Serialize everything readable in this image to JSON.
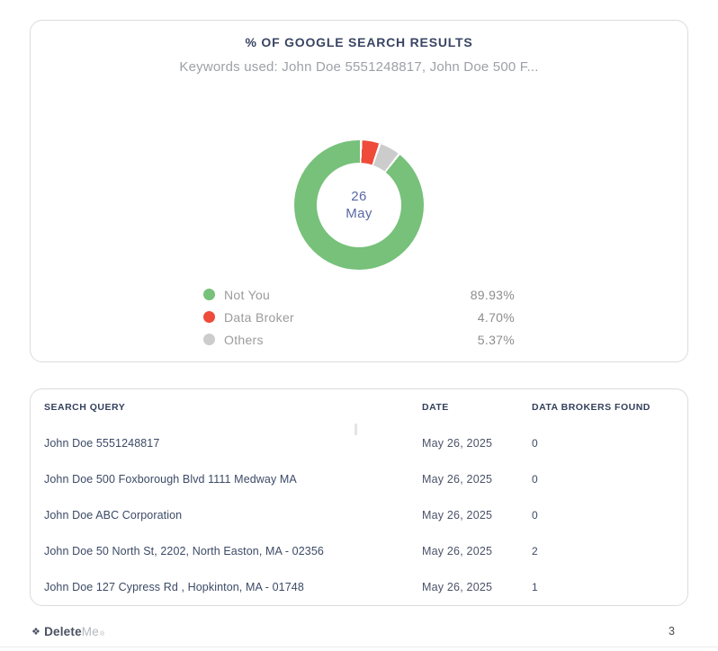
{
  "chart_data": {
    "type": "donut",
    "title": "% OF GOOGLE SEARCH RESULTS",
    "subtitle": "Keywords used: John Doe 5551248817, John Doe 500 F...",
    "center_label": {
      "day": "26",
      "month": "May"
    },
    "segments": [
      {
        "label": "Not You",
        "value": 89.93,
        "display": "89.93%",
        "color": "#77c17a"
      },
      {
        "label": "Data Broker",
        "value": 4.7,
        "display": "4.70%",
        "color": "#ef4b3a"
      },
      {
        "label": "Others",
        "value": 5.37,
        "display": "5.37%",
        "color": "#cccccc"
      }
    ],
    "draw_order": [
      1,
      2,
      0
    ],
    "start_angle_deg": 2,
    "gap_deg": 2,
    "legend_position": "bottom"
  },
  "table": {
    "columns": [
      "SEARCH QUERY",
      "DATE",
      "DATA BROKERS FOUND"
    ],
    "rows": [
      {
        "query": "John Doe 5551248817",
        "date": "May 26, 2025",
        "found": "0"
      },
      {
        "query": "John Doe 500 Foxborough Blvd 1111 Medway MA",
        "date": "May 26, 2025",
        "found": "0"
      },
      {
        "query": "John Doe ABC Corporation",
        "date": "May 26, 2025",
        "found": "0"
      },
      {
        "query": "John Doe 50 North St, 2202, North Easton, MA - 02356",
        "date": "May 26, 2025",
        "found": "2"
      },
      {
        "query": "John Doe 127 Cypress Rd , Hopkinton, MA - 01748",
        "date": "May 26, 2025",
        "found": "1"
      }
    ]
  },
  "footer": {
    "brand_icon": "❖",
    "brand_bold": "Delete",
    "brand_light": "Me",
    "brand_mark": "®",
    "page_number": "3"
  }
}
